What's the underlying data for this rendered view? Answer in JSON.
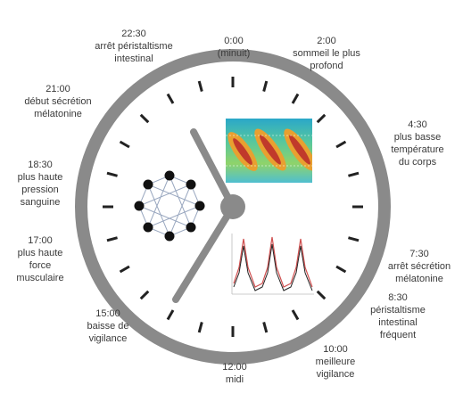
{
  "labels": [
    {
      "time": "22:30",
      "lines": [
        "arrêt péristaltisme",
        "intestinal"
      ]
    },
    {
      "time": "0:00",
      "lines": [
        "(minuit)"
      ]
    },
    {
      "time": "2:00",
      "lines": [
        "sommeil le plus",
        "profond"
      ]
    },
    {
      "time": "4:30",
      "lines": [
        "plus basse",
        "température",
        "du corps"
      ]
    },
    {
      "time": "7:30",
      "lines": [
        "arrêt sécrétion",
        "mélatonine"
      ]
    },
    {
      "time": "8:30",
      "lines": [
        "péristaltisme",
        "intestinal",
        "fréquent"
      ]
    },
    {
      "time": "10:00",
      "lines": [
        "meilleure",
        "vigilance"
      ]
    },
    {
      "time": "12:00",
      "lines": [
        "midi"
      ]
    },
    {
      "time": "15:00",
      "lines": [
        "baisse de",
        "vigilance"
      ]
    },
    {
      "time": "17:00",
      "lines": [
        "plus haute",
        "force",
        "musculaire"
      ]
    },
    {
      "time": "18:30",
      "lines": [
        "plus haute",
        "pression",
        "sanguine"
      ]
    },
    {
      "time": "21:00",
      "lines": [
        "début sécrétion",
        "mélatonine"
      ]
    }
  ]
}
